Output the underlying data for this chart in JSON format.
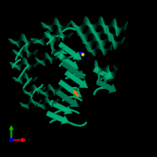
{
  "background_color": "#000000",
  "protein_color": "#00b37a",
  "protein_color_dark": "#007a55",
  "protein_color_mid": "#009966",
  "protein_color_light": "#00cc88",
  "small_mol_blue": "#0000ff",
  "small_mol_yellow": "#ffcc00",
  "small_mol_orange": "#ff6600",
  "axis_x_color": "#ff0000",
  "axis_y_color": "#00bb00",
  "axis_z_color": "#0000cc",
  "figsize": [
    2.0,
    2.0
  ],
  "dpi": 100
}
